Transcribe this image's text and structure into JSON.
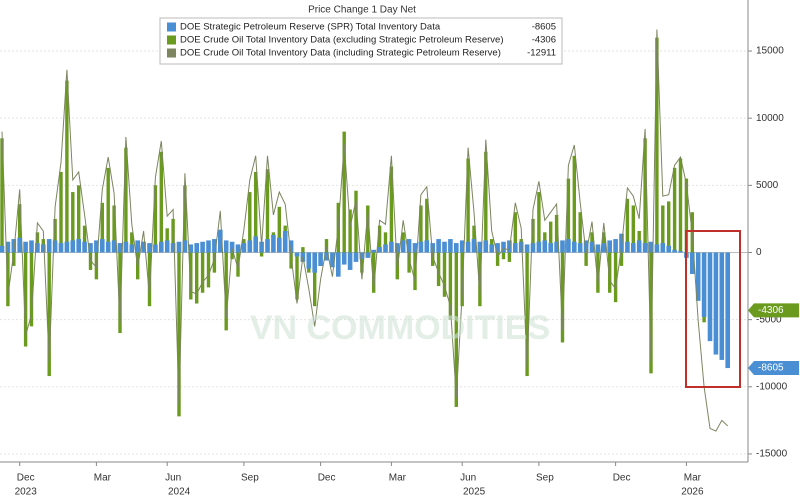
{
  "chart_data": {
    "type": "bar",
    "title": "Price Change 1 Day Net",
    "watermark": "VN COMMODITIES",
    "categories": [
      null,
      null,
      null,
      "Dec",
      null,
      null,
      null,
      null,
      null,
      null,
      null,
      null,
      null,
      null,
      null,
      null,
      "Mar",
      null,
      null,
      null,
      null,
      null,
      null,
      null,
      null,
      null,
      null,
      null,
      "Jun",
      null,
      null,
      null,
      null,
      null,
      null,
      null,
      null,
      null,
      null,
      null,
      null,
      "Sep",
      null,
      null,
      null,
      null,
      null,
      null,
      null,
      null,
      null,
      null,
      null,
      null,
      "Dec",
      null,
      null,
      null,
      null,
      null,
      null,
      null,
      null,
      null,
      null,
      null,
      "Mar",
      null,
      null,
      null,
      null,
      null,
      null,
      null,
      null,
      null,
      null,
      null,
      "Jun",
      null,
      null,
      null,
      null,
      null,
      null,
      null,
      null,
      null,
      null,
      null,
      null,
      "Sep",
      null,
      null,
      null,
      null,
      null,
      null,
      null,
      null,
      null,
      null,
      null,
      null,
      "Dec",
      null,
      null,
      null,
      null,
      null,
      null,
      null,
      null,
      null,
      null,
      null,
      "Mar",
      null,
      null,
      null,
      null,
      null,
      null,
      null
    ],
    "years": [
      null,
      null,
      null,
      "2023",
      null,
      null,
      null,
      null,
      null,
      null,
      null,
      null,
      null,
      null,
      null,
      null,
      null,
      null,
      null,
      null,
      null,
      null,
      null,
      null,
      null,
      null,
      null,
      null,
      null,
      "2024",
      null,
      null,
      null,
      null,
      null,
      null,
      null,
      null,
      null,
      null,
      null,
      null,
      null,
      null,
      null,
      null,
      null,
      null,
      null,
      null,
      null,
      null,
      null,
      null,
      null,
      null,
      null,
      null,
      null,
      null,
      null,
      null,
      null,
      null,
      null,
      null,
      null,
      null,
      null,
      null,
      null,
      null,
      null,
      null,
      null,
      null,
      null,
      null,
      null,
      "2025",
      null,
      null,
      null,
      null,
      null,
      null,
      null,
      null,
      null,
      null,
      null,
      null,
      null,
      null,
      null,
      null,
      null,
      null,
      null,
      null,
      null,
      null,
      null,
      null,
      null,
      null,
      null,
      null,
      null,
      null,
      null,
      null,
      null,
      null,
      null,
      null,
      "2026",
      null,
      null,
      null,
      null,
      null,
      null,
      null
    ],
    "series": [
      {
        "name": "DOE Strategic Petroleum Reserve (SPR) Total Inventory Data",
        "color": "#4a8fd4",
        "values": [
          500,
          800,
          1000,
          1100,
          800,
          900,
          700,
          600,
          1000,
          900,
          700,
          800,
          900,
          1000,
          800,
          700,
          900,
          1000,
          800,
          900,
          700,
          800,
          600,
          900,
          800,
          700,
          600,
          800,
          900,
          700,
          800,
          900,
          600,
          700,
          800,
          900,
          1000,
          1700,
          900,
          800,
          600,
          700,
          900,
          1200,
          800,
          1000,
          1300,
          1100,
          1600,
          900,
          -300,
          -700,
          -1200,
          -1500,
          -1000,
          -600,
          -1100,
          -1800,
          -900,
          -1300,
          -700,
          -500,
          -400,
          200,
          400,
          600,
          800,
          700,
          900,
          1000,
          700,
          800,
          900,
          700,
          1000,
          800,
          1000,
          700,
          900,
          800,
          1000,
          800,
          900,
          600,
          700,
          800,
          900,
          700,
          800,
          600,
          700,
          800,
          900,
          700,
          800,
          900,
          1000,
          800,
          700,
          900,
          800,
          600,
          700,
          900,
          1000,
          1400,
          800,
          700,
          900,
          700,
          800,
          600,
          700,
          500,
          200,
          100,
          -400,
          -1600,
          -3600,
          -4800,
          -6600,
          -7600,
          -8000,
          -8605
        ]
      },
      {
        "name": "DOE Crude Oil Total Inventory Data (excluding Strategic Petroleum Reserve)",
        "color": "#6a9a1e",
        "values": [
          8500,
          -4000,
          -1000,
          3600,
          -7000,
          -5500,
          1500,
          1000,
          -9200,
          2500,
          6000,
          12800,
          4500,
          5000,
          2000,
          -1300,
          -2000,
          3700,
          6300,
          3500,
          -6000,
          7800,
          1500,
          -2000,
          800,
          -4000,
          5000,
          7500,
          1800,
          2500,
          -12200,
          5000,
          -3500,
          -3800,
          -3000,
          -2600,
          -1500,
          1400,
          -5800,
          -500,
          -1800,
          1000,
          4500,
          6000,
          -300,
          6200,
          1500,
          3400,
          2000,
          -1200,
          -3500,
          400,
          -1500,
          -4000,
          -1000,
          1000,
          -700,
          3700,
          9000,
          3200,
          4600,
          -1500,
          3500,
          -3000,
          2000,
          1500,
          6400,
          -2000,
          1500,
          -1500,
          -2800,
          3500,
          4000,
          -1000,
          -2500,
          -3300,
          -5000,
          -11500,
          -4000,
          7000,
          2000,
          -4000,
          7500,
          1000,
          -1000,
          -500,
          -700,
          3000,
          1000,
          -9200,
          2500,
          4500,
          1500,
          2300,
          2800,
          -6700,
          5500,
          7200,
          3000,
          -1000,
          1500,
          -3000,
          1500,
          -3000,
          -3700,
          -1000,
          4000,
          3500,
          1600,
          8500,
          -9000,
          16000,
          3500,
          3800,
          6300,
          7000,
          5500,
          3000,
          -1500,
          -5200,
          -6500,
          -5700,
          -4500,
          -4306
        ]
      },
      {
        "name": "DOE Crude Oil Total Inventory Data (including Strategic Petroleum Reserve)",
        "color": "#7b8560",
        "values": [
          9000,
          -3200,
          0,
          4700,
          -6200,
          -4600,
          2200,
          1600,
          -8200,
          3400,
          6700,
          13600,
          5400,
          6000,
          2800,
          -600,
          -1100,
          4700,
          7100,
          4400,
          -5300,
          8600,
          2100,
          -1100,
          1600,
          -3300,
          5600,
          8300,
          2700,
          3200,
          -11400,
          5900,
          -2900,
          -3100,
          -2200,
          -1700,
          -500,
          3100,
          -4900,
          300,
          -1200,
          1700,
          5400,
          7200,
          500,
          7200,
          2800,
          4500,
          3600,
          -300,
          -3800,
          -300,
          -2700,
          -5500,
          -2000,
          400,
          -1800,
          1900,
          8100,
          1900,
          3900,
          -2000,
          3100,
          -2800,
          2400,
          2100,
          7200,
          -1300,
          2400,
          -500,
          -2100,
          4300,
          4900,
          -300,
          -1500,
          -2500,
          -4000,
          -10800,
          -3100,
          7800,
          3000,
          -3200,
          8400,
          1600,
          -300,
          300,
          200,
          3700,
          1800,
          -8600,
          3200,
          5300,
          2400,
          3000,
          3600,
          -5800,
          6500,
          8000,
          3700,
          -100,
          2300,
          -2400,
          2200,
          -2100,
          -2700,
          400,
          4800,
          4200,
          2500,
          9200,
          -8200,
          16600,
          4200,
          4300,
          6500,
          7100,
          5100,
          1400,
          -5100,
          -10000,
          -13100,
          -13300,
          -12500,
          -12911
        ]
      }
    ],
    "ylim": [
      -15600,
      18800
    ],
    "yticks": [
      15000,
      10000,
      5000,
      0,
      -5000,
      -10000,
      -15000
    ],
    "grid": true
  }
}
